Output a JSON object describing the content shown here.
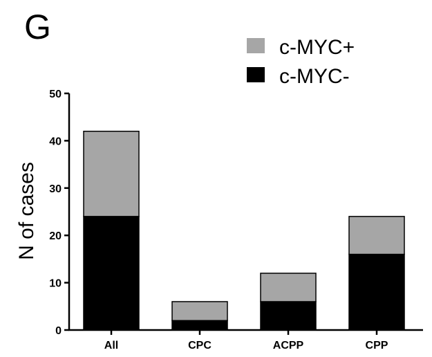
{
  "panel_label": "G",
  "chart_data": {
    "type": "bar",
    "stacked": true,
    "title": "",
    "xlabel": "",
    "ylabel": "N of cases",
    "ylim": [
      0,
      50
    ],
    "yticks": [
      0,
      10,
      20,
      30,
      40,
      50
    ],
    "categories": [
      "All",
      "CPC",
      "ACPP",
      "CPP"
    ],
    "series": [
      {
        "name": "c-MYC-",
        "color": "#000000",
        "values": [
          24,
          2,
          6,
          16
        ]
      },
      {
        "name": "c-MYC+",
        "color": "#a6a6a6",
        "values": [
          18,
          4,
          6,
          8
        ]
      }
    ],
    "legend": {
      "placement": "top-right",
      "entries": [
        {
          "label": "c-MYC+",
          "color": "#a6a6a6"
        },
        {
          "label": "c-MYC-",
          "color": "#000000"
        }
      ]
    },
    "grid": false
  }
}
